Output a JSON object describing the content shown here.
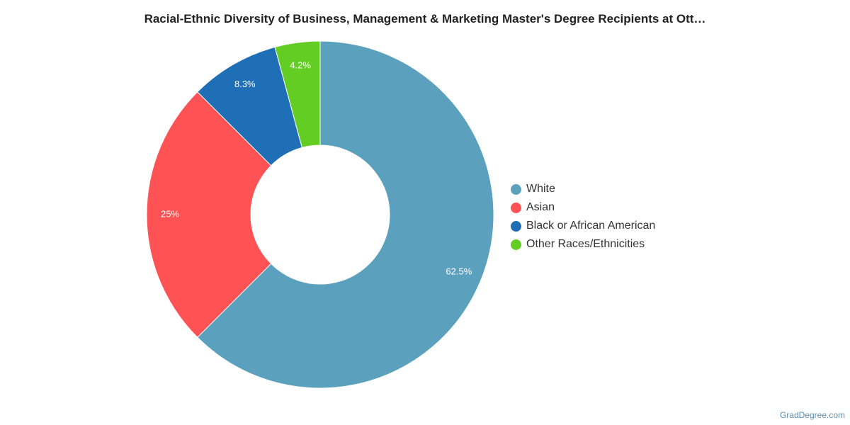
{
  "chart_data": {
    "type": "pie",
    "title": "Racial-Ethnic Diversity of Business, Management & Marketing Master's Degree Recipients at Ott…",
    "donut": true,
    "legend_position": "right",
    "categories": [
      "White",
      "Asian",
      "Black or African American",
      "Other Races/Ethnicities"
    ],
    "values": [
      62.5,
      25,
      8.3,
      4.2
    ],
    "labels": [
      "62.5%",
      "25%",
      "8.3%",
      "4.2%"
    ],
    "colors": [
      "#5ba1be",
      "#ff5254",
      "#1f6fb7",
      "#63cd24"
    ]
  },
  "credit": "GradDegree.com"
}
